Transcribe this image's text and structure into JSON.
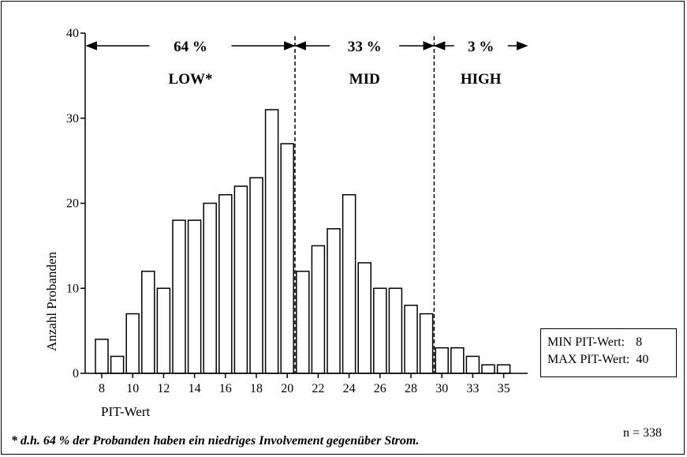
{
  "chart_data": {
    "type": "bar",
    "xlabel": "PIT-Wert",
    "ylabel": "Anzahl Probanden",
    "ylim": [
      0,
      40
    ],
    "yticks": [
      "0",
      "10",
      "20",
      "30",
      "40"
    ],
    "xtick_labels": [
      "8",
      "10",
      "12",
      "14",
      "16",
      "18",
      "20",
      "22",
      "24",
      "26",
      "28",
      "30",
      "33",
      "35"
    ],
    "values": [
      4,
      2,
      7,
      12,
      10,
      18,
      18,
      20,
      21,
      22,
      23,
      31,
      27,
      12,
      15,
      17,
      21,
      13,
      10,
      10,
      8,
      7,
      3,
      3,
      2,
      1,
      1
    ],
    "segments": [
      {
        "percent": "64 %",
        "label": "LOW*"
      },
      {
        "percent": "33 %",
        "label": "MID"
      },
      {
        "percent": "3 %",
        "label": "HIGH"
      }
    ],
    "grid": false
  },
  "info": {
    "min_label": "MIN PIT-Wert:",
    "min_value": "8",
    "max_label": "MAX PIT-Wert:",
    "max_value": "40"
  },
  "n_label": "n = 338",
  "footnote": "* d.h. 64 % der Probanden haben ein niedriges Involvement gegenüber Strom."
}
